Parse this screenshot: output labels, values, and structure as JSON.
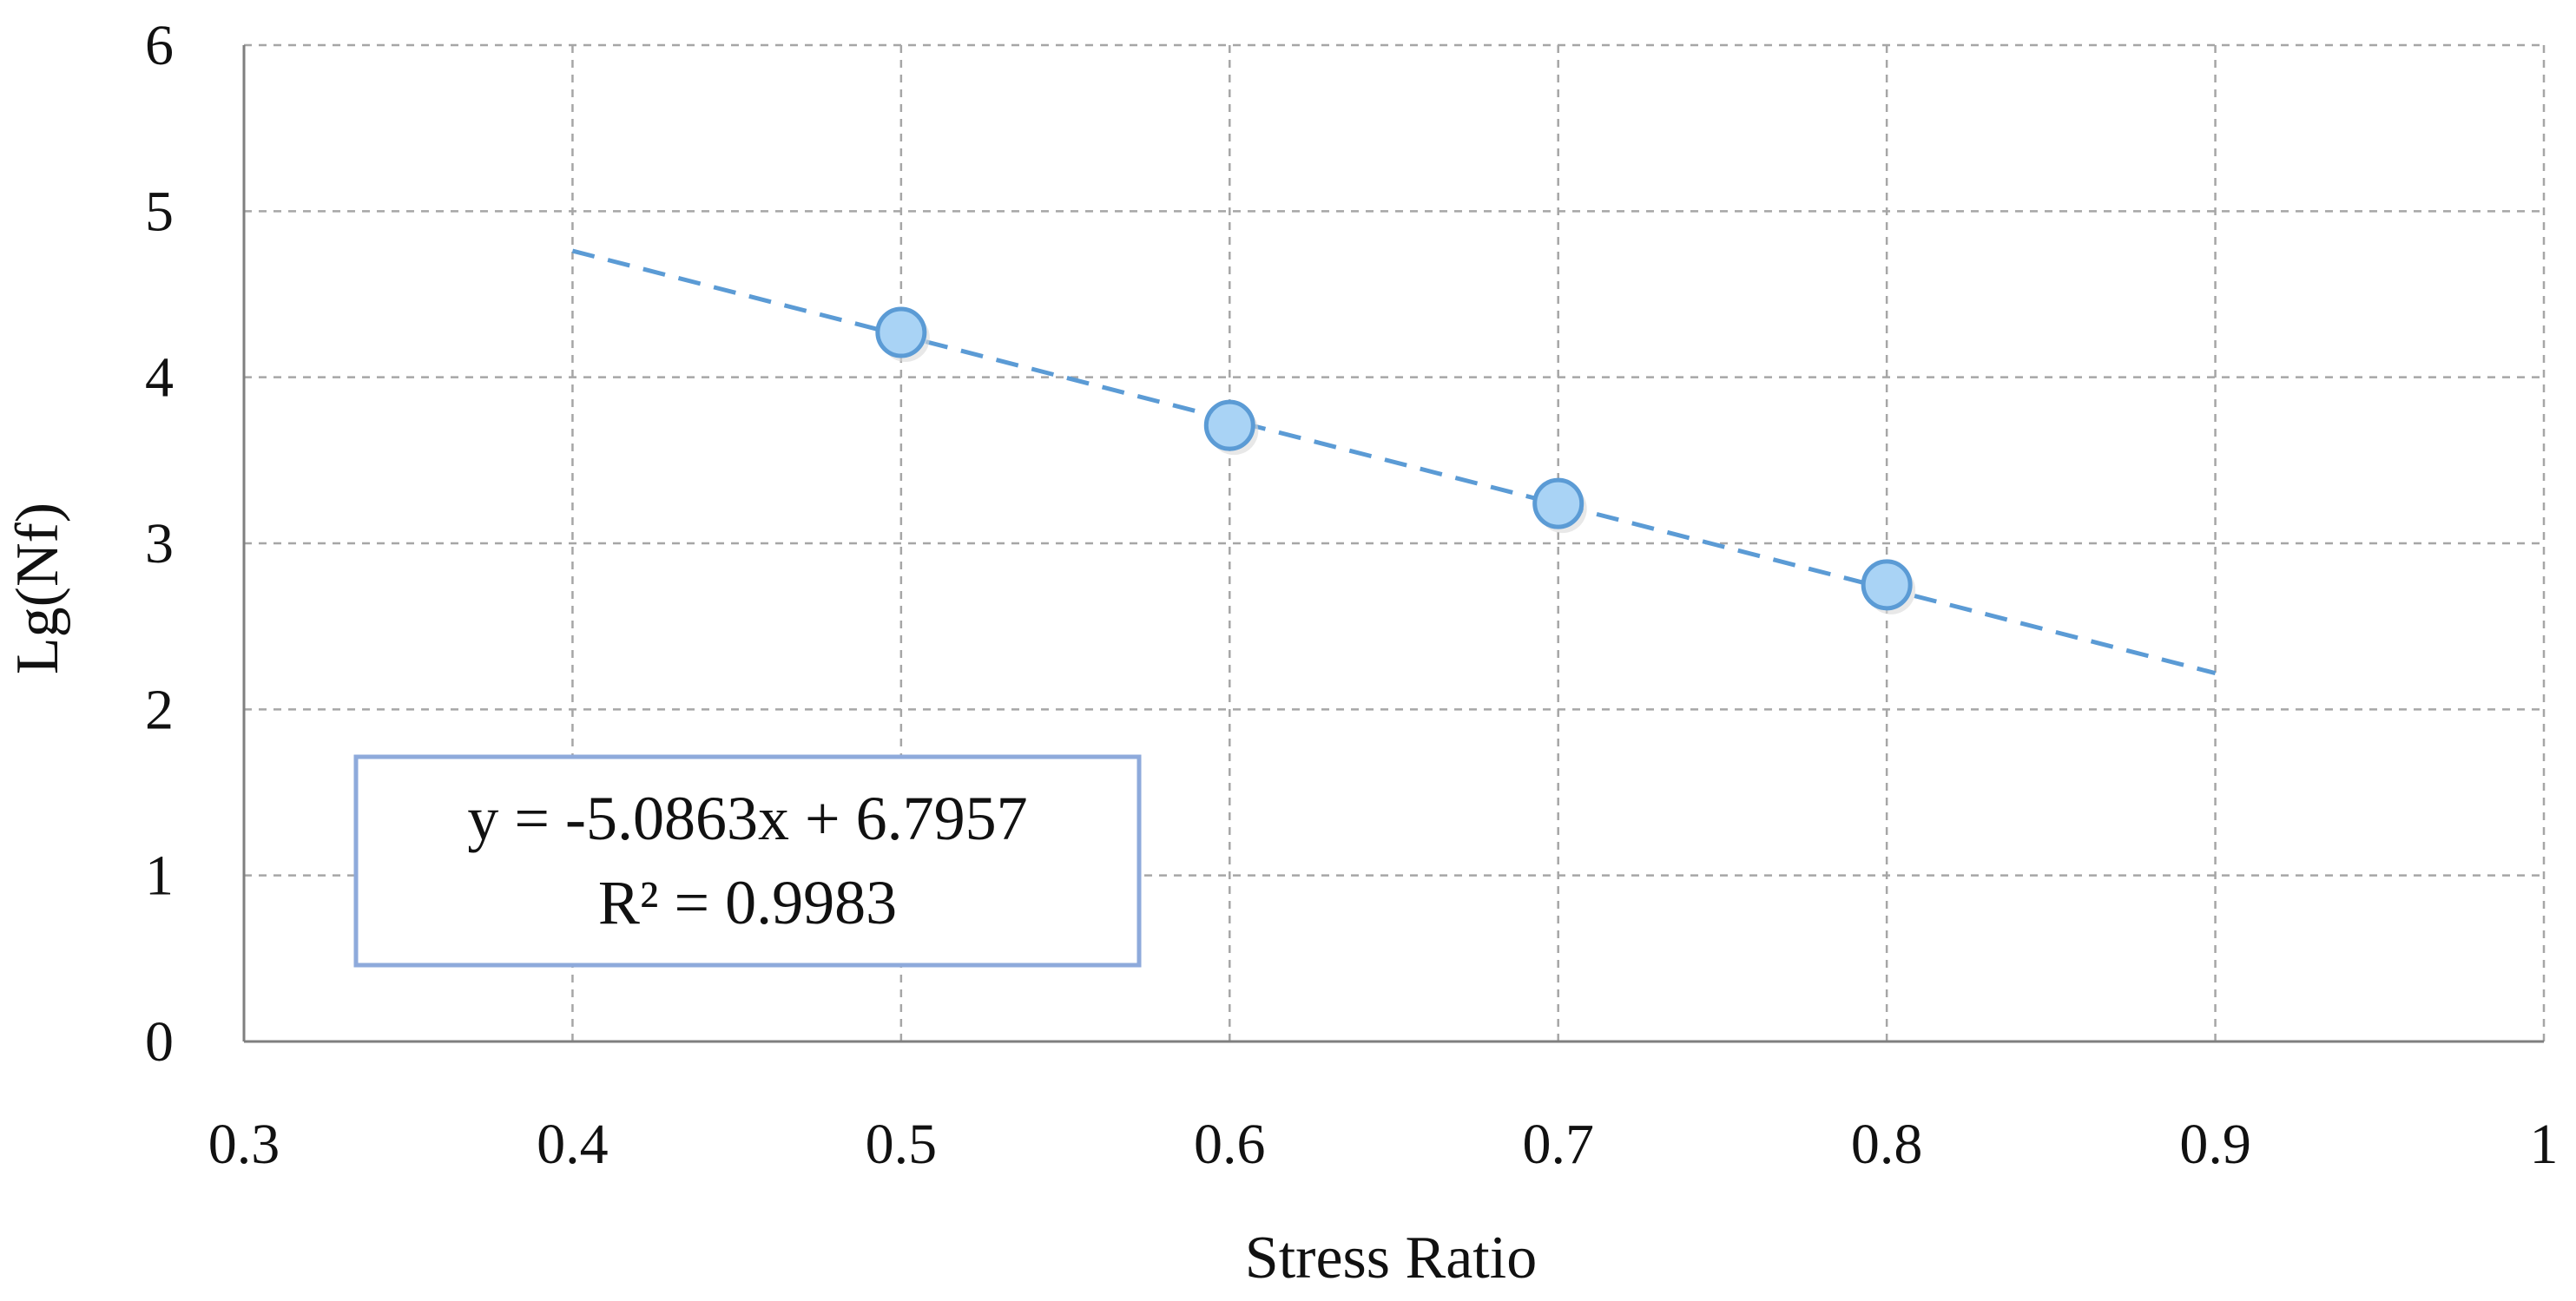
{
  "chart_data": {
    "type": "scatter",
    "title": "",
    "xlabel": "Stress Ratio",
    "ylabel": "Lg(Nf)",
    "xlim": [
      0.3,
      1.0
    ],
    "ylim": [
      0,
      6
    ],
    "xticks": [
      0.3,
      0.4,
      0.5,
      0.6,
      0.7,
      0.8,
      0.9,
      1.0
    ],
    "xtick_labels": [
      "0.3",
      "0.4",
      "0.5",
      "0.6",
      "0.7",
      "0.8",
      "0.9",
      "1"
    ],
    "yticks": [
      0,
      1,
      2,
      3,
      4,
      5,
      6
    ],
    "ytick_labels": [
      "0",
      "1",
      "2",
      "3",
      "4",
      "5",
      "6"
    ],
    "grid": true,
    "series": [
      {
        "name": "Lg(Nf)",
        "points": [
          {
            "x": 0.5,
            "y": 4.27
          },
          {
            "x": 0.6,
            "y": 3.71
          },
          {
            "x": 0.7,
            "y": 3.24
          },
          {
            "x": 0.8,
            "y": 2.75
          }
        ],
        "marker_color": "#a9d3f5",
        "marker_edge": "#5b9bd5"
      }
    ],
    "trendline": {
      "slope": -5.0863,
      "intercept": 6.7957,
      "x_range": [
        0.4,
        0.9
      ],
      "color": "#5b9bd5",
      "style": "dashed"
    },
    "annotation": {
      "equation": "y = -5.0863x + 6.7957",
      "r_squared": "R² = 0.9983",
      "border_color": "#8eaadb"
    }
  }
}
